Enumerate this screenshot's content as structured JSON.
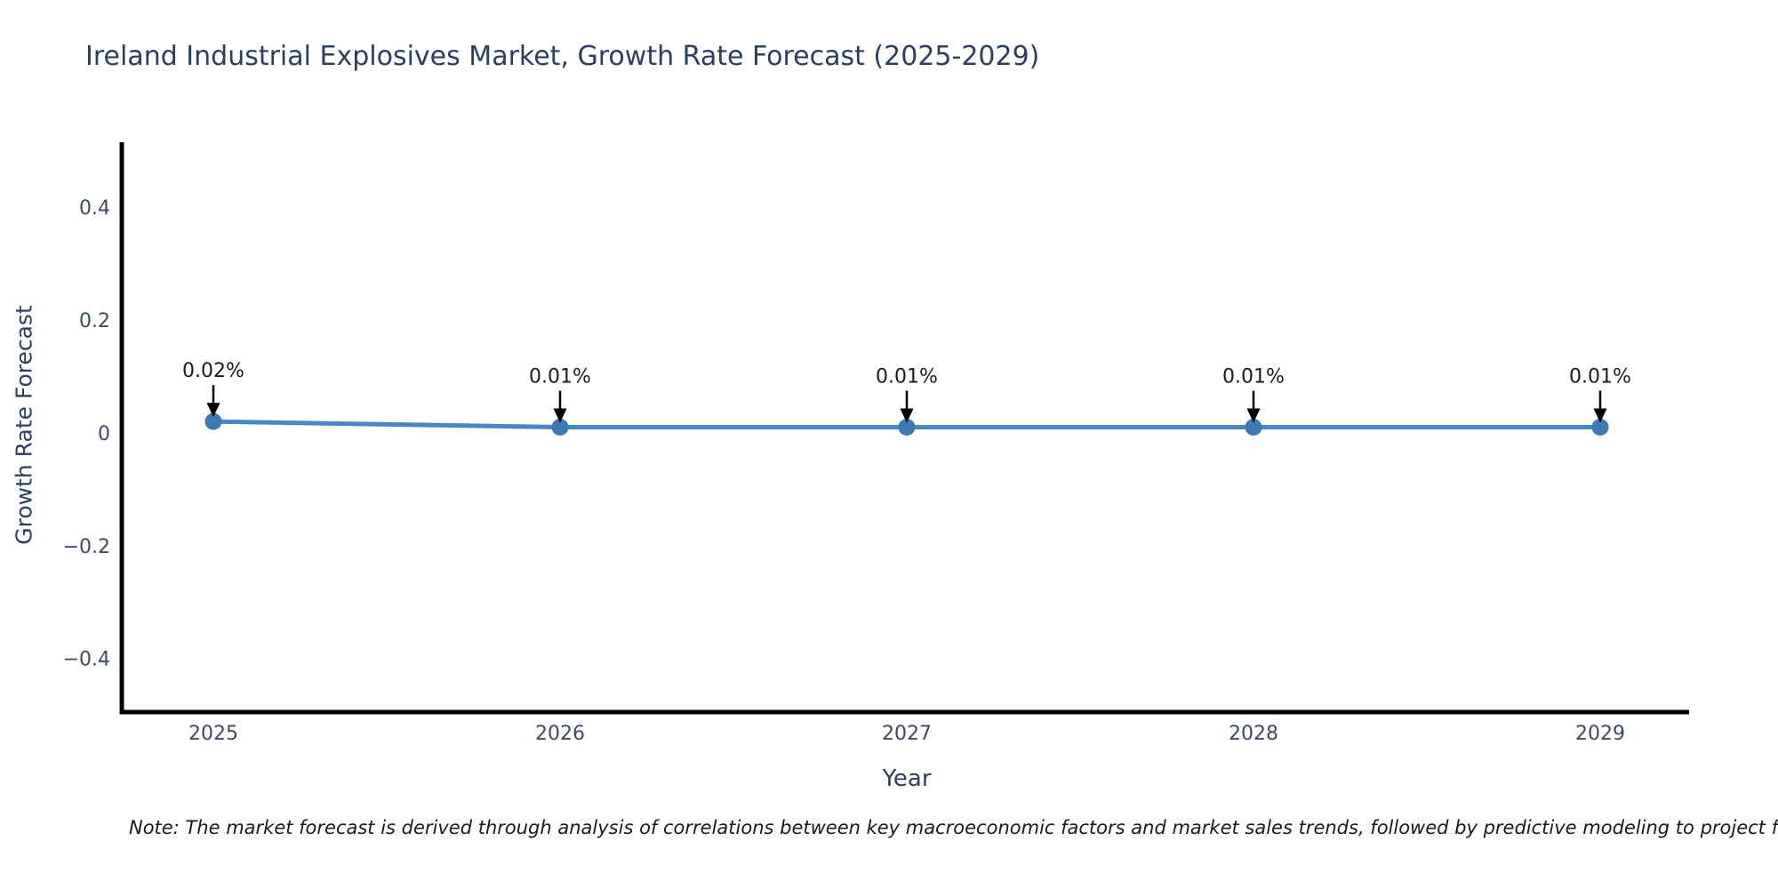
{
  "chart_data": {
    "type": "line",
    "title": "Ireland Industrial Explosives Market, Growth Rate Forecast (2025-2029)",
    "xlabel": "Year",
    "ylabel": "Growth Rate Forecast",
    "categories": [
      "2025",
      "2026",
      "2027",
      "2028",
      "2029"
    ],
    "series": [
      {
        "name": "Growth Rate Forecast",
        "values": [
          0.02,
          0.01,
          0.01,
          0.01,
          0.01
        ],
        "point_labels": [
          "0.02%",
          "0.01%",
          "0.01%",
          "0.01%",
          "0.01%"
        ]
      }
    ],
    "ylim": [
      -0.495,
      0.515
    ],
    "yticks": [
      0.4,
      0.2,
      0,
      -0.2,
      -0.4
    ],
    "ytick_labels": [
      "0.4",
      "0.2",
      "0",
      "−0.2",
      "−0.4"
    ],
    "grid": false,
    "legend": "none",
    "annotations_have_arrows": true,
    "colors": {
      "line": "#4687c1",
      "marker": "#3c78b4",
      "axis": "#000000",
      "title_text": "#2a3f5f",
      "tick_text": "#3b4a63",
      "annotation_text": "#1a1a1a",
      "arrow": "#000000",
      "background": "#ffffff"
    }
  },
  "footnote": {
    "text": "Note: The market forecast is derived through analysis of correlations between key macroeconomic factors and market sales trends, followed by predictive modeling to project future sa"
  }
}
